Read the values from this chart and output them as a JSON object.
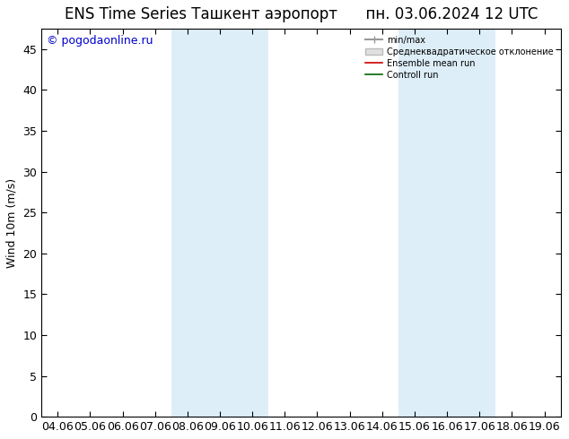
{
  "title": "ENS Time Series Ташкент аэропорт      пн. 03.06.2024 12 UTC",
  "ylabel": "Wind 10m (m/s)",
  "watermark": "© pogodaonline.ru",
  "xlim_dates": [
    "04.06",
    "05.06",
    "06.06",
    "07.06",
    "08.06",
    "09.06",
    "10.06",
    "11.06",
    "12.06",
    "13.06",
    "14.06",
    "15.06",
    "16.06",
    "17.06",
    "18.06",
    "19.06"
  ],
  "ylim": [
    0,
    47.5
  ],
  "yticks": [
    0,
    5,
    10,
    15,
    20,
    25,
    30,
    35,
    40,
    45
  ],
  "shaded_bands": [
    {
      "xstart": 4,
      "xend": 6,
      "color": "#ddeef8"
    },
    {
      "xstart": 11,
      "xend": 13,
      "color": "#ddeef8"
    }
  ],
  "legend_items": [
    {
      "label": "min/max",
      "color": "#999999",
      "lw": 1.5
    },
    {
      "label": "Среднеквадратическое отклонение",
      "color": "#cccccc",
      "lw": 8
    },
    {
      "label": "Ensemble mean run",
      "color": "#cc0000",
      "lw": 1.2
    },
    {
      "label": "Controll run",
      "color": "#006600",
      "lw": 1.2
    }
  ],
  "background_color": "#ffffff",
  "plot_bg_color": "#ffffff",
  "title_fontsize": 12,
  "axis_fontsize": 9,
  "tick_fontsize": 9,
  "watermark_color": "#0000cc",
  "watermark_fontsize": 9
}
